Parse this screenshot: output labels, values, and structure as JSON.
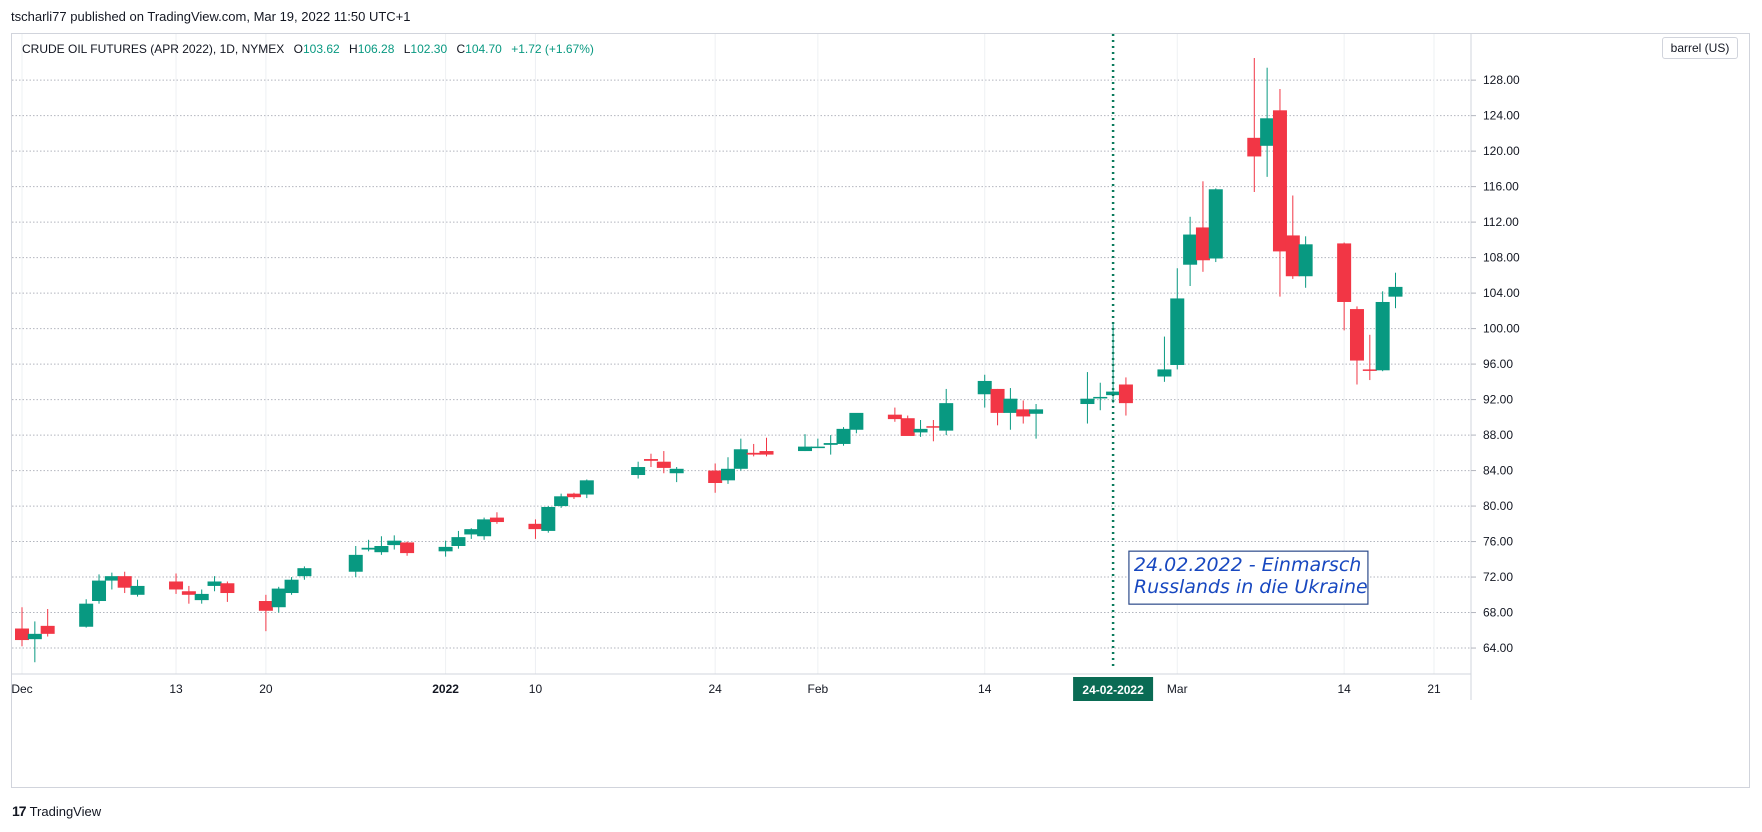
{
  "header": {
    "published": "tscharli77 published on TradingView.com, Mar 19, 2022 11:50 UTC+1"
  },
  "legend": {
    "symbol": "CRUDE OIL FUTURES (APR 2022), 1D, NYMEX",
    "o_label": "O",
    "o": "103.62",
    "h_label": "H",
    "h": "106.28",
    "l_label": "L",
    "l": "102.30",
    "c_label": "C",
    "c": "104.70",
    "change": "+1.72 (+1.67%)"
  },
  "price_unit": "barrel (US)",
  "footer": {
    "brand_logo": "17",
    "brand": "TradingView"
  },
  "colors": {
    "up": "#089981",
    "down": "#f23645",
    "grid": "#b2b5be",
    "marker": "#0a7a5c",
    "annotation": "#1848c0"
  },
  "chart_data": {
    "type": "candlestick",
    "title": "CRUDE OIL FUTURES (APR 2022), 1D, NYMEX",
    "ylabel": "barrel (US)",
    "ylim": [
      61.3,
      133.2
    ],
    "yticks": [
      "128.00",
      "124.00",
      "120.00",
      "116.00",
      "112.00",
      "108.00",
      "104.00",
      "100.00",
      "96.00",
      "92.00",
      "88.00",
      "84.00",
      "80.00",
      "76.00",
      "72.00",
      "68.00",
      "64.00"
    ],
    "xticks": [
      {
        "label": "Dec",
        "date": "2021-12-01"
      },
      {
        "label": "13",
        "date": "2021-12-13"
      },
      {
        "label": "20",
        "date": "2021-12-20"
      },
      {
        "label": "2022",
        "date": "2022-01-03",
        "bold": true
      },
      {
        "label": "10",
        "date": "2022-01-10"
      },
      {
        "label": "24",
        "date": "2022-01-24"
      },
      {
        "label": "Feb",
        "date": "2022-02-01"
      },
      {
        "label": "14",
        "date": "2022-02-14"
      },
      {
        "label": "Mar",
        "date": "2022-03-01"
      },
      {
        "label": "14",
        "date": "2022-03-14"
      },
      {
        "label": "21",
        "date": "2022-03-21"
      }
    ],
    "candles": [
      {
        "d": "2021-12-01",
        "o": 66.2,
        "h": 68.6,
        "l": 64.2,
        "c": 64.9
      },
      {
        "d": "2021-12-02",
        "o": 65.0,
        "h": 67.0,
        "l": 62.4,
        "c": 65.6
      },
      {
        "d": "2021-12-03",
        "o": 66.5,
        "h": 68.4,
        "l": 65.3,
        "c": 65.6
      },
      {
        "d": "2021-12-06",
        "o": 66.4,
        "h": 69.5,
        "l": 66.3,
        "c": 69.0
      },
      {
        "d": "2021-12-07",
        "o": 69.3,
        "h": 72.3,
        "l": 69.0,
        "c": 71.6
      },
      {
        "d": "2021-12-08",
        "o": 71.6,
        "h": 72.5,
        "l": 70.6,
        "c": 72.1
      },
      {
        "d": "2021-12-09",
        "o": 72.1,
        "h": 72.6,
        "l": 70.2,
        "c": 70.8
      },
      {
        "d": "2021-12-10",
        "o": 70.0,
        "h": 71.7,
        "l": 69.8,
        "c": 71.0
      },
      {
        "d": "2021-12-13",
        "o": 71.5,
        "h": 72.4,
        "l": 70.1,
        "c": 70.6
      },
      {
        "d": "2021-12-14",
        "o": 70.4,
        "h": 71.0,
        "l": 69.0,
        "c": 70.0
      },
      {
        "d": "2021-12-15",
        "o": 69.4,
        "h": 70.6,
        "l": 69.0,
        "c": 70.1
      },
      {
        "d": "2021-12-16",
        "o": 71.0,
        "h": 72.1,
        "l": 70.4,
        "c": 71.5
      },
      {
        "d": "2021-12-17",
        "o": 71.3,
        "h": 71.5,
        "l": 69.2,
        "c": 70.2
      },
      {
        "d": "2021-12-20",
        "o": 69.3,
        "h": 70.0,
        "l": 65.9,
        "c": 68.2
      },
      {
        "d": "2021-12-21",
        "o": 68.6,
        "h": 70.9,
        "l": 68.0,
        "c": 70.7
      },
      {
        "d": "2021-12-22",
        "o": 70.2,
        "h": 72.0,
        "l": 70.0,
        "c": 71.7
      },
      {
        "d": "2021-12-23",
        "o": 72.1,
        "h": 73.2,
        "l": 71.7,
        "c": 73.0
      },
      {
        "d": "2021-12-27",
        "o": 72.6,
        "h": 75.5,
        "l": 72.0,
        "c": 74.5
      },
      {
        "d": "2021-12-28",
        "o": 75.1,
        "h": 76.2,
        "l": 74.9,
        "c": 75.3
      },
      {
        "d": "2021-12-29",
        "o": 74.8,
        "h": 76.6,
        "l": 74.5,
        "c": 75.5
      },
      {
        "d": "2021-12-30",
        "o": 75.6,
        "h": 76.7,
        "l": 75.1,
        "c": 76.1
      },
      {
        "d": "2021-12-31",
        "o": 75.9,
        "h": 76.0,
        "l": 74.4,
        "c": 74.7
      },
      {
        "d": "2022-01-03",
        "o": 74.9,
        "h": 76.1,
        "l": 74.3,
        "c": 75.4
      },
      {
        "d": "2022-01-04",
        "o": 75.5,
        "h": 77.2,
        "l": 75.2,
        "c": 76.5
      },
      {
        "d": "2022-01-05",
        "o": 76.8,
        "h": 77.5,
        "l": 76.3,
        "c": 77.4
      },
      {
        "d": "2022-01-06",
        "o": 76.6,
        "h": 78.7,
        "l": 76.2,
        "c": 78.5
      },
      {
        "d": "2022-01-07",
        "o": 78.7,
        "h": 79.3,
        "l": 78.0,
        "c": 78.2
      },
      {
        "d": "2022-01-10",
        "o": 78.0,
        "h": 78.5,
        "l": 76.3,
        "c": 77.4
      },
      {
        "d": "2022-01-11",
        "o": 77.2,
        "h": 80.0,
        "l": 77.0,
        "c": 79.9
      },
      {
        "d": "2022-01-12",
        "o": 80.0,
        "h": 81.4,
        "l": 79.8,
        "c": 81.1
      },
      {
        "d": "2022-01-13",
        "o": 81.4,
        "h": 81.5,
        "l": 80.8,
        "c": 81.0
      },
      {
        "d": "2022-01-14",
        "o": 81.3,
        "h": 83.0,
        "l": 80.9,
        "c": 82.9
      },
      {
        "d": "2022-01-18",
        "o": 83.5,
        "h": 85.0,
        "l": 83.1,
        "c": 84.4
      },
      {
        "d": "2022-01-19",
        "o": 85.3,
        "h": 85.9,
        "l": 84.4,
        "c": 85.1
      },
      {
        "d": "2022-01-20",
        "o": 85.0,
        "h": 86.2,
        "l": 83.7,
        "c": 84.3
      },
      {
        "d": "2022-01-21",
        "o": 83.7,
        "h": 84.4,
        "l": 82.7,
        "c": 84.2
      },
      {
        "d": "2022-01-24",
        "o": 84.0,
        "h": 84.8,
        "l": 81.5,
        "c": 82.6
      },
      {
        "d": "2022-01-25",
        "o": 82.9,
        "h": 85.5,
        "l": 82.5,
        "c": 84.2
      },
      {
        "d": "2022-01-26",
        "o": 84.2,
        "h": 87.6,
        "l": 84.0,
        "c": 86.4
      },
      {
        "d": "2022-01-27",
        "o": 86.0,
        "h": 87.0,
        "l": 85.6,
        "c": 85.8
      },
      {
        "d": "2022-01-28",
        "o": 86.2,
        "h": 87.7,
        "l": 85.6,
        "c": 85.8
      },
      {
        "d": "2022-01-31",
        "o": 86.2,
        "h": 88.1,
        "l": 86.2,
        "c": 86.7
      },
      {
        "d": "2022-02-01",
        "o": 86.7,
        "h": 87.6,
        "l": 86.7,
        "c": 86.7
      },
      {
        "d": "2022-02-02",
        "o": 86.9,
        "h": 88.0,
        "l": 85.8,
        "c": 87.1
      },
      {
        "d": "2022-02-03",
        "o": 87.0,
        "h": 88.9,
        "l": 86.8,
        "c": 88.7
      },
      {
        "d": "2022-02-04",
        "o": 88.6,
        "h": 90.4,
        "l": 88.2,
        "c": 90.5
      },
      {
        "d": "2022-02-07",
        "o": 90.3,
        "h": 91.1,
        "l": 89.5,
        "c": 89.8
      },
      {
        "d": "2022-02-08",
        "o": 89.9,
        "h": 90.2,
        "l": 88.0,
        "c": 87.9
      },
      {
        "d": "2022-02-09",
        "o": 88.3,
        "h": 89.7,
        "l": 87.8,
        "c": 88.7
      },
      {
        "d": "2022-02-10",
        "o": 89.0,
        "h": 89.7,
        "l": 87.3,
        "c": 88.9
      },
      {
        "d": "2022-02-11",
        "o": 88.5,
        "h": 93.2,
        "l": 88.0,
        "c": 91.6
      },
      {
        "d": "2022-02-14",
        "o": 92.6,
        "h": 94.8,
        "l": 91.1,
        "c": 94.1
      },
      {
        "d": "2022-02-15",
        "o": 93.2,
        "h": 93.2,
        "l": 89.1,
        "c": 90.5
      },
      {
        "d": "2022-02-16",
        "o": 90.5,
        "h": 93.3,
        "l": 88.6,
        "c": 92.1
      },
      {
        "d": "2022-02-17",
        "o": 90.9,
        "h": 91.9,
        "l": 89.3,
        "c": 90.1
      },
      {
        "d": "2022-02-18",
        "o": 90.4,
        "h": 91.5,
        "l": 87.6,
        "c": 90.9
      },
      {
        "d": "2022-02-22",
        "o": 91.5,
        "h": 95.1,
        "l": 89.3,
        "c": 92.1
      },
      {
        "d": "2022-02-23",
        "o": 92.2,
        "h": 93.9,
        "l": 90.8,
        "c": 92.3
      },
      {
        "d": "2022-02-24",
        "o": 92.5,
        "h": 100.5,
        "l": 91.6,
        "c": 92.9
      },
      {
        "d": "2022-02-25",
        "o": 93.7,
        "h": 94.5,
        "l": 90.2,
        "c": 91.6
      },
      {
        "d": "2022-02-28",
        "o": 94.6,
        "h": 99.1,
        "l": 94.0,
        "c": 95.4
      },
      {
        "d": "2022-03-01",
        "o": 95.9,
        "h": 106.8,
        "l": 95.4,
        "c": 103.4
      },
      {
        "d": "2022-03-02",
        "o": 107.2,
        "h": 112.6,
        "l": 104.8,
        "c": 110.6
      },
      {
        "d": "2022-03-03",
        "o": 111.4,
        "h": 116.6,
        "l": 106.4,
        "c": 107.7
      },
      {
        "d": "2022-03-04",
        "o": 107.9,
        "h": 115.8,
        "l": 107.5,
        "c": 115.7
      },
      {
        "d": "2022-03-07",
        "o": 121.5,
        "h": 130.5,
        "l": 115.4,
        "c": 119.4
      },
      {
        "d": "2022-03-08",
        "o": 120.6,
        "h": 129.4,
        "l": 117.1,
        "c": 123.7
      },
      {
        "d": "2022-03-09",
        "o": 124.6,
        "h": 127.0,
        "l": 103.6,
        "c": 108.7
      },
      {
        "d": "2022-03-10",
        "o": 110.5,
        "h": 115.0,
        "l": 105.6,
        "c": 105.9
      },
      {
        "d": "2022-03-11",
        "o": 105.9,
        "h": 110.4,
        "l": 104.6,
        "c": 109.5
      },
      {
        "d": "2022-03-14",
        "o": 109.6,
        "h": 109.7,
        "l": 99.8,
        "c": 103.0
      },
      {
        "d": "2022-03-15",
        "o": 102.2,
        "h": 102.5,
        "l": 93.7,
        "c": 96.4
      },
      {
        "d": "2022-03-16",
        "o": 95.4,
        "h": 99.3,
        "l": 94.2,
        "c": 95.3
      },
      {
        "d": "2022-03-17",
        "o": 95.3,
        "h": 104.2,
        "l": 95.2,
        "c": 103.0
      },
      {
        "d": "2022-03-18",
        "o": 103.6,
        "h": 106.3,
        "l": 102.3,
        "c": 104.7
      }
    ],
    "marker": {
      "date": "2022-02-24",
      "label": "24-02-2022"
    },
    "annotation": {
      "date": "2022-02-25",
      "price": 71.2,
      "lines": [
        "24.02.2022 - Einmarsch",
        "Russlands in die Ukraine"
      ]
    }
  }
}
